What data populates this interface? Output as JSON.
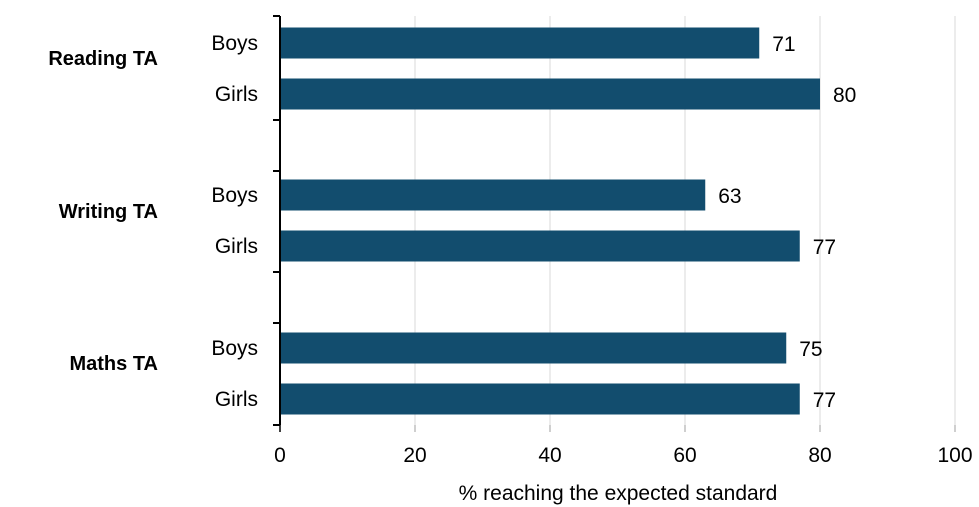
{
  "chart_data": {
    "type": "bar",
    "orientation": "horizontal",
    "groups": [
      {
        "label": "Reading TA",
        "bars": [
          {
            "category": "Boys",
            "value": 71
          },
          {
            "category": "Girls",
            "value": 80
          }
        ]
      },
      {
        "label": "Writing TA",
        "bars": [
          {
            "category": "Boys",
            "value": 63
          },
          {
            "category": "Girls",
            "value": 77
          }
        ]
      },
      {
        "label": "Maths TA",
        "bars": [
          {
            "category": "Boys",
            "value": 75
          },
          {
            "category": "Girls",
            "value": 77
          }
        ]
      }
    ],
    "xlabel": "% reaching the expected standard",
    "xlim": [
      0,
      100
    ],
    "xticks": [
      0,
      20,
      40,
      60,
      80,
      100
    ],
    "grid": "vertical",
    "data_labels": true,
    "bar_color": "#124d6e"
  }
}
